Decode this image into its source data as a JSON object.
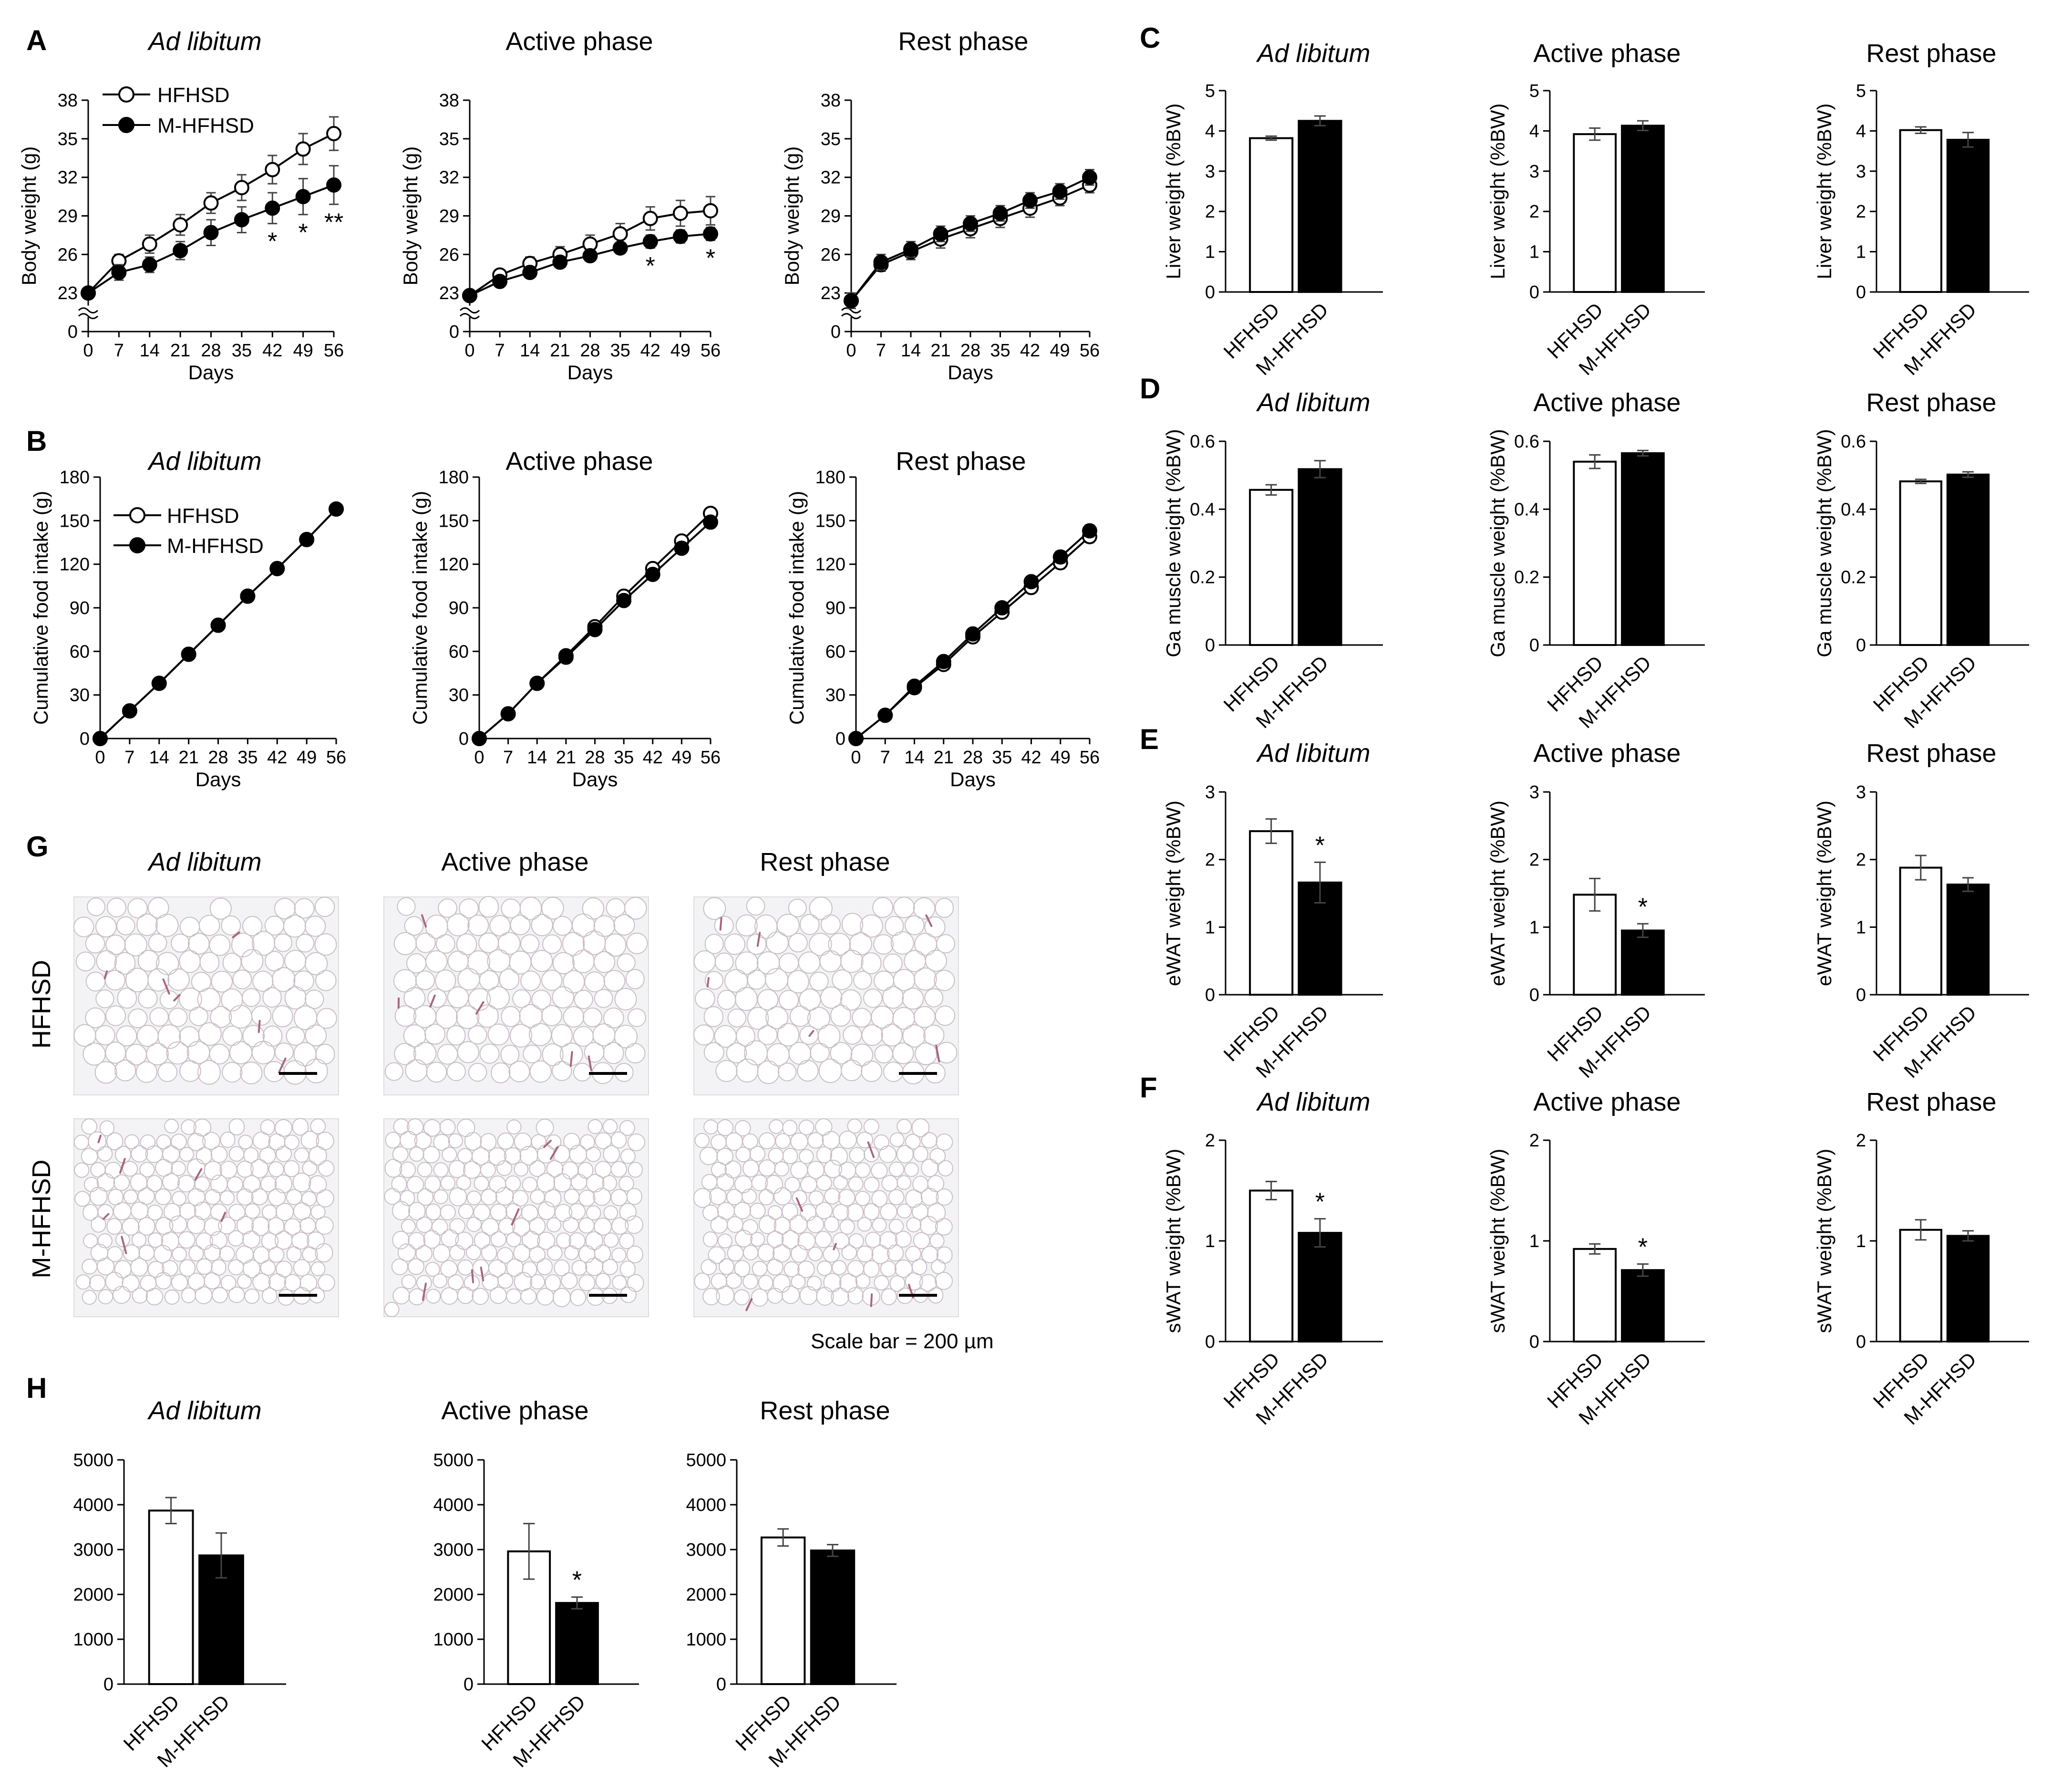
{
  "panel_labels": {
    "A": "A",
    "B": "B",
    "C": "C",
    "D": "D",
    "E": "E",
    "F": "F",
    "G": "G",
    "H": "H"
  },
  "conditions": [
    "Ad libitum",
    "Active phase",
    "Rest phase"
  ],
  "legend": {
    "open": "HFHSD",
    "filled": "M-HFHSD"
  },
  "histology": {
    "rows": [
      "HFHSD",
      "M-HFHSD"
    ],
    "columns": [
      "Ad libitum",
      "Active phase",
      "Rest phase"
    ],
    "scale_bar_text": "Scale bar = 200 µm",
    "colors": {
      "background": "#f3f3f5",
      "cell_wall": "#c9bfc7",
      "vessel": "#a8667a"
    }
  },
  "colors": {
    "open_fill": "#ffffff",
    "filled_fill": "#000000",
    "stroke": "#000000"
  },
  "chart_data": [
    {
      "id": "A1",
      "panel": "A",
      "type": "line",
      "title": "Ad libitum",
      "xlabel": "Days",
      "ylabel": "Body weight (g)",
      "x": [
        0,
        7,
        14,
        21,
        28,
        35,
        42,
        49,
        56
      ],
      "yticks": [
        0,
        23,
        26,
        29,
        32,
        35,
        38
      ],
      "axis_break": true,
      "ylim": [
        0,
        38
      ],
      "series": [
        {
          "name": "HFHSD",
          "marker": "open",
          "values": [
            23.0,
            25.5,
            26.8,
            28.3,
            30.0,
            31.2,
            32.6,
            34.2,
            35.4
          ],
          "errors": [
            0.4,
            0.5,
            0.7,
            0.8,
            0.8,
            1.0,
            1.1,
            1.2,
            1.3
          ]
        },
        {
          "name": "M-HFHSD",
          "marker": "filled",
          "values": [
            23.0,
            24.6,
            25.2,
            26.3,
            27.7,
            28.7,
            29.6,
            30.5,
            31.4
          ],
          "errors": [
            0.4,
            0.6,
            0.6,
            0.7,
            1.0,
            1.0,
            1.2,
            1.4,
            1.5
          ]
        }
      ],
      "annotations": [
        {
          "x": 42,
          "text": "*"
        },
        {
          "x": 49,
          "text": "*"
        },
        {
          "x": 56,
          "text": "**"
        }
      ]
    },
    {
      "id": "A2",
      "panel": "A",
      "type": "line",
      "title": "Active phase",
      "xlabel": "Days",
      "ylabel": "Body weight (g)",
      "x": [
        0,
        7,
        14,
        21,
        28,
        35,
        42,
        49,
        56
      ],
      "yticks": [
        0,
        23,
        26,
        29,
        32,
        35,
        38
      ],
      "axis_break": true,
      "ylim": [
        0,
        38
      ],
      "series": [
        {
          "name": "HFHSD",
          "marker": "open",
          "values": [
            22.8,
            24.4,
            25.3,
            26.0,
            26.8,
            27.6,
            28.8,
            29.2,
            29.4
          ],
          "errors": [
            0.3,
            0.4,
            0.5,
            0.6,
            0.7,
            0.8,
            0.9,
            1.0,
            1.1
          ]
        },
        {
          "name": "M-HFHSD",
          "marker": "filled",
          "values": [
            22.8,
            23.9,
            24.6,
            25.4,
            25.9,
            26.5,
            27.0,
            27.4,
            27.6
          ],
          "errors": [
            0.3,
            0.3,
            0.4,
            0.4,
            0.4,
            0.4,
            0.5,
            0.5,
            0.5
          ]
        }
      ],
      "annotations": [
        {
          "x": 42,
          "text": "*"
        },
        {
          "x": 56,
          "text": "*"
        }
      ]
    },
    {
      "id": "A3",
      "panel": "A",
      "type": "line",
      "title": "Rest phase",
      "xlabel": "Days",
      "ylabel": "Body weight (g)",
      "x": [
        0,
        7,
        14,
        21,
        28,
        35,
        42,
        49,
        56
      ],
      "yticks": [
        0,
        23,
        26,
        29,
        32,
        35,
        38
      ],
      "axis_break": true,
      "ylim": [
        0,
        38
      ],
      "series": [
        {
          "name": "HFHSD",
          "marker": "open",
          "values": [
            22.4,
            25.2,
            26.2,
            27.2,
            28.0,
            28.8,
            29.6,
            30.4,
            31.4
          ],
          "errors": [
            0.6,
            0.5,
            0.6,
            0.7,
            0.7,
            0.7,
            0.7,
            0.6,
            0.6
          ]
        },
        {
          "name": "M-HFHSD",
          "marker": "filled",
          "values": [
            22.4,
            25.4,
            26.4,
            27.6,
            28.4,
            29.2,
            30.2,
            30.9,
            32.0
          ],
          "errors": [
            0.6,
            0.6,
            0.6,
            0.6,
            0.6,
            0.6,
            0.6,
            0.6,
            0.6
          ]
        }
      ],
      "annotations": []
    },
    {
      "id": "B1",
      "panel": "B",
      "type": "line",
      "title": "Ad libitum",
      "xlabel": "Days",
      "ylabel": "Cumulative  food intake (g)",
      "x": [
        0,
        7,
        14,
        21,
        28,
        35,
        42,
        49,
        56
      ],
      "yticks": [
        0,
        30,
        60,
        90,
        120,
        150,
        180
      ],
      "ylim": [
        0,
        180
      ],
      "series": [
        {
          "name": "HFHSD",
          "marker": "open",
          "values": [
            0,
            19,
            38,
            58,
            78,
            98,
            117,
            137,
            158
          ],
          "errors": [
            0,
            0,
            0,
            0,
            0,
            0,
            0,
            0,
            0
          ]
        },
        {
          "name": "M-HFHSD",
          "marker": "filled",
          "values": [
            0,
            19,
            38,
            58,
            78,
            98,
            117,
            137,
            158
          ],
          "errors": [
            0,
            0,
            0,
            0,
            0,
            0,
            0,
            0,
            0
          ]
        }
      ],
      "annotations": []
    },
    {
      "id": "B2",
      "panel": "B",
      "type": "line",
      "title": "Active phase",
      "xlabel": "Days",
      "ylabel": "Cumulative  food intake (g)",
      "x": [
        0,
        7,
        14,
        21,
        28,
        35,
        42,
        49,
        56
      ],
      "yticks": [
        0,
        30,
        60,
        90,
        120,
        150,
        180
      ],
      "ylim": [
        0,
        180
      ],
      "series": [
        {
          "name": "HFHSD",
          "marker": "open",
          "values": [
            0,
            17,
            38,
            57,
            77,
            98,
            117,
            136,
            155
          ],
          "errors": [
            0,
            0,
            0,
            0,
            0,
            0,
            0,
            0,
            0
          ]
        },
        {
          "name": "M-HFHSD",
          "marker": "filled",
          "values": [
            0,
            17,
            38,
            56,
            75,
            95,
            113,
            131,
            149
          ],
          "errors": [
            0,
            0,
            0,
            0,
            0,
            0,
            0,
            0,
            0
          ]
        }
      ],
      "annotations": []
    },
    {
      "id": "B3",
      "panel": "B",
      "type": "line",
      "title": "Rest phase",
      "xlabel": "Days",
      "ylabel": "Cumulative  food intake (g)",
      "x": [
        0,
        7,
        14,
        21,
        28,
        35,
        42,
        49,
        56
      ],
      "yticks": [
        0,
        30,
        60,
        90,
        120,
        150,
        180
      ],
      "ylim": [
        0,
        180
      ],
      "series": [
        {
          "name": "HFHSD",
          "marker": "open",
          "values": [
            0,
            16,
            35,
            51,
            70,
            87,
            104,
            121,
            139
          ],
          "errors": [
            0,
            0,
            0,
            0,
            0,
            2,
            3,
            4,
            4
          ]
        },
        {
          "name": "M-HFHSD",
          "marker": "filled",
          "values": [
            0,
            16,
            36,
            53,
            72,
            90,
            108,
            125,
            143
          ],
          "errors": [
            0,
            0,
            0,
            0,
            0,
            2,
            3,
            4,
            4
          ]
        }
      ],
      "annotations": []
    },
    {
      "id": "C1",
      "panel": "C",
      "type": "bar",
      "title": "Ad libitum",
      "ylabel": "Liver weight  (%BW)",
      "categories": [
        "HFHSD",
        "M-HFHSD"
      ],
      "values": [
        3.82,
        4.25
      ],
      "errors": [
        0.05,
        0.12
      ],
      "ylim": [
        0,
        5
      ],
      "yticks": [
        0,
        1,
        2,
        3,
        4,
        5
      ],
      "annotations": []
    },
    {
      "id": "C2",
      "panel": "C",
      "type": "bar",
      "title": "Active phase",
      "ylabel": "Liver weight  (%BW)",
      "categories": [
        "HFHSD",
        "M-HFHSD"
      ],
      "values": [
        3.92,
        4.13
      ],
      "errors": [
        0.15,
        0.12
      ],
      "ylim": [
        0,
        5
      ],
      "yticks": [
        0,
        1,
        2,
        3,
        4,
        5
      ],
      "annotations": []
    },
    {
      "id": "C3",
      "panel": "C",
      "type": "bar",
      "title": "Rest phase",
      "ylabel": "Liver weight  (%BW)",
      "categories": [
        "HFHSD",
        "M-HFHSD"
      ],
      "values": [
        4.02,
        3.78
      ],
      "errors": [
        0.08,
        0.18
      ],
      "ylim": [
        0,
        5
      ],
      "yticks": [
        0,
        1,
        2,
        3,
        4,
        5
      ],
      "annotations": []
    },
    {
      "id": "D1",
      "panel": "D",
      "type": "bar",
      "title": "Ad libitum",
      "ylabel": "Ga muscle weight  (%BW)",
      "categories": [
        "HFHSD",
        "M-HFHSD"
      ],
      "values": [
        0.457,
        0.518
      ],
      "errors": [
        0.015,
        0.025
      ],
      "ylim": [
        0,
        0.6
      ],
      "yticks": [
        0,
        0.2,
        0.4,
        0.6
      ],
      "annotations": []
    },
    {
      "id": "D2",
      "panel": "D",
      "type": "bar",
      "title": "Active phase",
      "ylabel": "Ga muscle weight  (%BW)",
      "categories": [
        "HFHSD",
        "M-HFHSD"
      ],
      "values": [
        0.54,
        0.565
      ],
      "errors": [
        0.02,
        0.008
      ],
      "ylim": [
        0,
        0.6
      ],
      "yticks": [
        0,
        0.2,
        0.4,
        0.6
      ],
      "annotations": []
    },
    {
      "id": "D3",
      "panel": "D",
      "type": "bar",
      "title": "Rest phase",
      "ylabel": "Ga muscle weight  (%BW)",
      "categories": [
        "HFHSD",
        "M-HFHSD"
      ],
      "values": [
        0.482,
        0.502
      ],
      "errors": [
        0.006,
        0.008
      ],
      "ylim": [
        0,
        0.6
      ],
      "yticks": [
        0,
        0.2,
        0.4,
        0.6
      ],
      "annotations": []
    },
    {
      "id": "E1",
      "panel": "E",
      "type": "bar",
      "title": "Ad libitum",
      "ylabel": "eWAT weight  (%BW)",
      "categories": [
        "HFHSD",
        "M-HFHSD"
      ],
      "values": [
        2.42,
        1.66
      ],
      "errors": [
        0.18,
        0.3
      ],
      "ylim": [
        0,
        3
      ],
      "yticks": [
        0,
        1,
        2,
        3
      ],
      "annotations": [
        {
          "category": "M-HFHSD",
          "text": "*"
        }
      ]
    },
    {
      "id": "E2",
      "panel": "E",
      "type": "bar",
      "title": "Active phase",
      "ylabel": "eWAT weight  (%BW)",
      "categories": [
        "HFHSD",
        "M-HFHSD"
      ],
      "values": [
        1.48,
        0.95
      ],
      "errors": [
        0.24,
        0.1
      ],
      "ylim": [
        0,
        3
      ],
      "yticks": [
        0,
        1,
        2,
        3
      ],
      "annotations": [
        {
          "category": "M-HFHSD",
          "text": "*"
        }
      ]
    },
    {
      "id": "E3",
      "panel": "E",
      "type": "bar",
      "title": "Rest phase",
      "ylabel": "eWAT weight  (%BW)",
      "categories": [
        "HFHSD",
        "M-HFHSD"
      ],
      "values": [
        1.88,
        1.63
      ],
      "errors": [
        0.18,
        0.1
      ],
      "ylim": [
        0,
        3
      ],
      "yticks": [
        0,
        1,
        2,
        3
      ],
      "annotations": []
    },
    {
      "id": "F1",
      "panel": "F",
      "type": "bar",
      "title": "Ad libitum",
      "ylabel": "sWAT weight  (%BW)",
      "categories": [
        "HFHSD",
        "M-HFHSD"
      ],
      "values": [
        1.5,
        1.08
      ],
      "errors": [
        0.09,
        0.14
      ],
      "ylim": [
        0,
        2
      ],
      "yticks": [
        0,
        1,
        2
      ],
      "annotations": [
        {
          "category": "M-HFHSD",
          "text": "*"
        }
      ]
    },
    {
      "id": "F2",
      "panel": "F",
      "type": "bar",
      "title": "Active phase",
      "ylabel": "sWAT weight  (%BW)",
      "categories": [
        "HFHSD",
        "M-HFHSD"
      ],
      "values": [
        0.92,
        0.71
      ],
      "errors": [
        0.05,
        0.06
      ],
      "ylim": [
        0,
        2
      ],
      "yticks": [
        0,
        1,
        2
      ],
      "annotations": [
        {
          "category": "M-HFHSD",
          "text": "*"
        }
      ]
    },
    {
      "id": "F3",
      "panel": "F",
      "type": "bar",
      "title": "Rest phase",
      "ylabel": "sWAT weight  (%BW)",
      "categories": [
        "HFHSD",
        "M-HFHSD"
      ],
      "values": [
        1.11,
        1.05
      ],
      "errors": [
        0.1,
        0.05
      ],
      "ylim": [
        0,
        2
      ],
      "yticks": [
        0,
        1,
        2
      ],
      "annotations": []
    },
    {
      "id": "H1",
      "panel": "H",
      "type": "bar",
      "title": "Ad libitum",
      "ylabel": "",
      "categories": [
        "HFHSD",
        "M-HFHSD"
      ],
      "values": [
        3870,
        2870
      ],
      "errors": [
        290,
        500
      ],
      "ylim": [
        0,
        5000
      ],
      "yticks": [
        0,
        1000,
        2000,
        3000,
        4000,
        5000
      ],
      "annotations": []
    },
    {
      "id": "H2",
      "panel": "H",
      "type": "bar",
      "title": "Active phase",
      "ylabel": "",
      "categories": [
        "HFHSD",
        "M-HFHSD"
      ],
      "values": [
        2960,
        1810
      ],
      "errors": [
        620,
        130
      ],
      "ylim": [
        0,
        5000
      ],
      "yticks": [
        0,
        1000,
        2000,
        3000,
        4000,
        5000
      ],
      "annotations": [
        {
          "category": "M-HFHSD",
          "text": "*"
        }
      ]
    },
    {
      "id": "H3",
      "panel": "H",
      "type": "bar",
      "title": "Rest phase",
      "ylabel": "",
      "categories": [
        "HFHSD",
        "M-HFHSD"
      ],
      "values": [
        3270,
        2980
      ],
      "errors": [
        190,
        130
      ],
      "ylim": [
        0,
        5000
      ],
      "yticks": [
        0,
        1000,
        2000,
        3000,
        4000,
        5000
      ],
      "annotations": []
    }
  ]
}
